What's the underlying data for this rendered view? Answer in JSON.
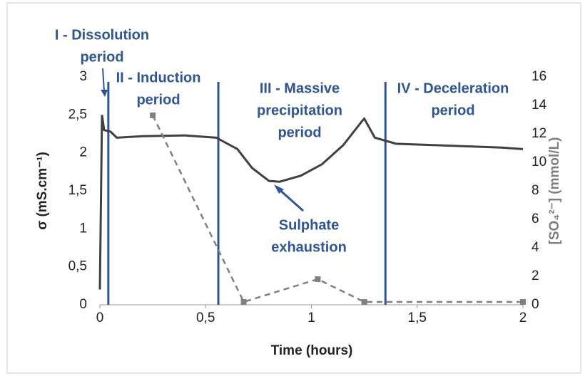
{
  "chart_data": {
    "type": "line",
    "xlabel": "Time (hours)",
    "ylabel": "σ (mS.cm⁻¹)",
    "y2label": "[SO₄²⁻] (mmol/L)",
    "xlim": [
      0,
      2
    ],
    "xticks": [
      0,
      {
        "value": 0.5,
        "label": "0,5"
      },
      1,
      {
        "value": 1.5,
        "label": "1,5"
      },
      2
    ],
    "ylim": [
      0,
      3
    ],
    "yticks": [
      0,
      {
        "value": 0.5,
        "label": "0,5"
      },
      1,
      {
        "value": 1.5,
        "label": "1,5"
      },
      2,
      {
        "value": 2.5,
        "label": "2,5"
      },
      3
    ],
    "y2lim": [
      0,
      16
    ],
    "y2ticks": [
      0,
      2,
      4,
      6,
      8,
      10,
      12,
      14,
      16
    ],
    "series": [
      {
        "color": "#404040",
        "dashed": false,
        "markers": false,
        "x": [
          0,
          0.01,
          0.02,
          0.05,
          0.08,
          0.2,
          0.4,
          0.55,
          0.65,
          0.72,
          0.8,
          0.85,
          0.95,
          1.05,
          1.15,
          1.24,
          1.25,
          1.3,
          1.4,
          1.6,
          1.9,
          2
        ],
        "values": [
          0.2,
          2.5,
          2.3,
          2.28,
          2.2,
          2.22,
          2.23,
          2.2,
          2.05,
          1.8,
          1.63,
          1.62,
          1.7,
          1.85,
          2.1,
          2.42,
          2.45,
          2.2,
          2.12,
          2.1,
          2.07,
          2.05
        ]
      },
      {
        "color": "#808080",
        "dashed": true,
        "markers": true,
        "axis": "y2",
        "x": [
          0.25,
          0.68,
          1.03,
          1.25,
          2
        ],
        "values": [
          13.3,
          0.2,
          1.8,
          0.2,
          0.2
        ]
      }
    ],
    "phase_boundaries": [
      0.04,
      0.56,
      1.35
    ],
    "boundary_color": "#2e5597",
    "annotations": [
      {
        "lines": [
          "I - Dissolution",
          "period"
        ]
      },
      {
        "lines": [
          "II - Induction",
          "period"
        ]
      },
      {
        "lines": [
          "III - Massive",
          "precipitation",
          "period"
        ]
      },
      {
        "lines": [
          "IV - Deceleration",
          "period"
        ]
      },
      {
        "lines": [
          "Sulphate",
          "exhaustion"
        ]
      }
    ]
  }
}
